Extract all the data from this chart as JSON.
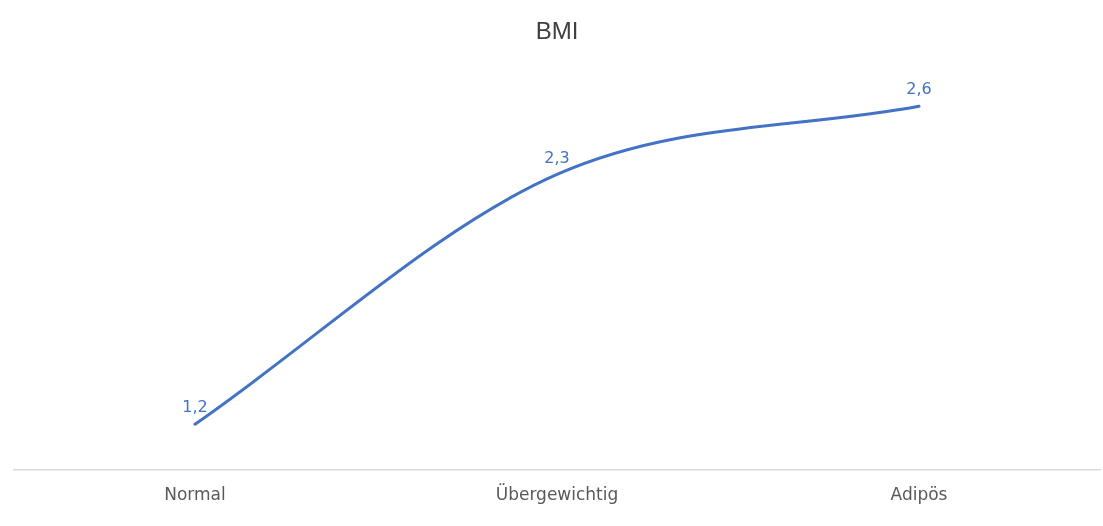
{
  "chart_data": {
    "type": "line",
    "title": "BMI",
    "categories": [
      "Normal",
      "Übergewichtig",
      "Adipös"
    ],
    "series": [
      {
        "color": "#4472c4",
        "values": [
          1.2,
          2.3,
          2.6
        ],
        "value_labels": [
          "1,2",
          "2,3",
          "2,6"
        ]
      }
    ],
    "tick_labels": "x",
    "grid": false,
    "legend": false,
    "marker": "none",
    "line_style": "solid"
  }
}
